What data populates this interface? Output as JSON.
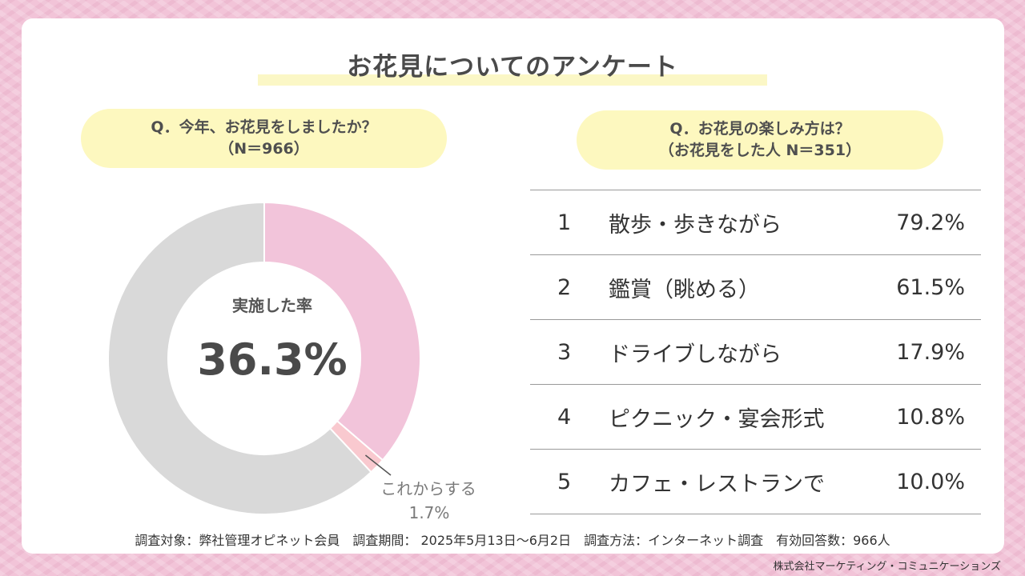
{
  "title": "お花見についてのアンケート",
  "question1": {
    "line1": "Q．今年、お花見をしましたか？",
    "line2": "（N＝966）"
  },
  "question2": {
    "line1": "Q．お花見の楽しみ方は？",
    "line2": "（お花見をした人 N＝351）"
  },
  "donut": {
    "center_caption": "実施した率",
    "center_value": "36.3%",
    "callout_label": "これからする",
    "callout_value": "1.7%"
  },
  "ranking": [
    {
      "rank": "1",
      "item": "散歩・歩きながら",
      "value": "79.2%"
    },
    {
      "rank": "2",
      "item": "鑑賞（眺める）",
      "value": "61.5%"
    },
    {
      "rank": "3",
      "item": "ドライブしながら",
      "value": "17.9%"
    },
    {
      "rank": "4",
      "item": "ピクニック・宴会形式",
      "value": "10.8%"
    },
    {
      "rank": "5",
      "item": "カフェ・レストランで",
      "value": "10.0%"
    }
  ],
  "footer": "調査対象：弊社管理オピネット会員　調査期間： 2025年5月13日～6月2日　調査方法：インターネット調査　有効回答数：966人",
  "company": "株式会社マーケティング・コミュニケーションズ",
  "chart_data": [
    {
      "type": "pie",
      "title": "Q．今年、お花見をしましたか？",
      "slices": [
        {
          "value": 36.3,
          "color": "#f2c4da"
        },
        {
          "label": "これからする",
          "value": 1.7,
          "color": "#f9c9cf"
        },
        {
          "value": 62.0,
          "color": "#d9d9d9"
        }
      ],
      "center_text": "実施した率 36.3%"
    },
    {
      "type": "table",
      "title": "Q．お花見の楽しみ方は？",
      "rows": [
        {
          "rank": 1,
          "item": "散歩・歩きながら",
          "value": 79.2
        },
        {
          "rank": 2,
          "item": "鑑賞（眺める）",
          "value": 61.5
        },
        {
          "rank": 3,
          "item": "ドライブしながら",
          "value": 17.9
        },
        {
          "rank": 4,
          "item": "ピクニック・宴会形式",
          "value": 10.8
        },
        {
          "rank": 5,
          "item": "カフェ・レストランで",
          "value": 10.0
        }
      ]
    }
  ]
}
